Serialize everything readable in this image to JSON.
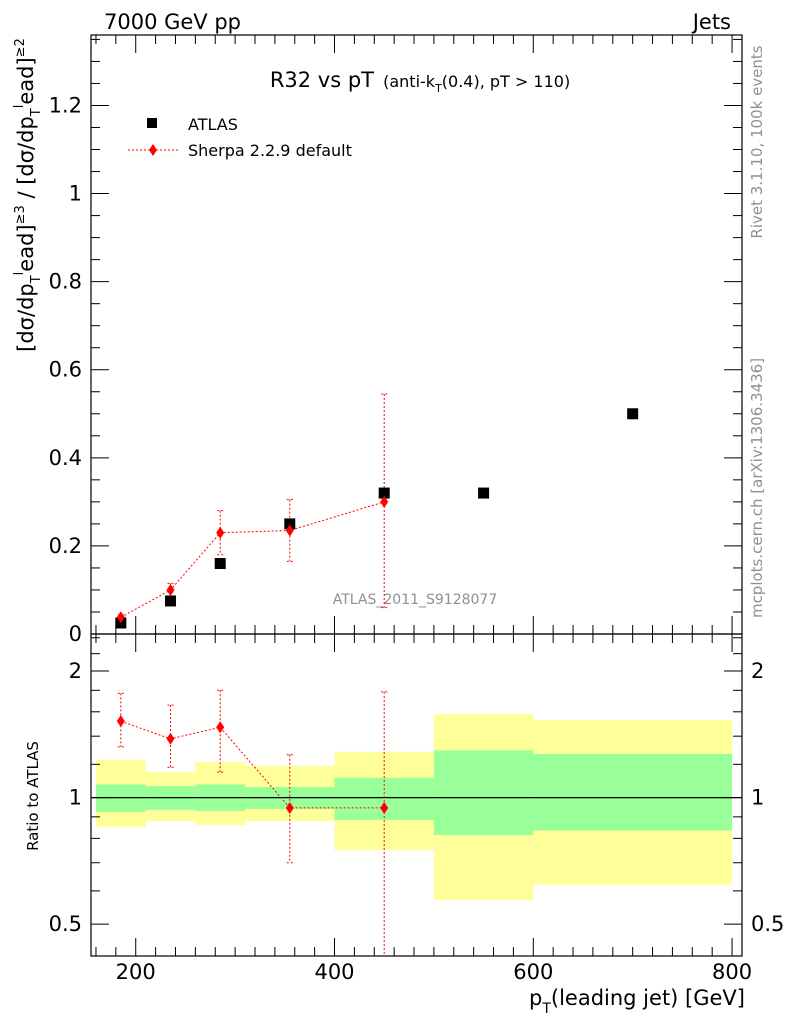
{
  "header": {
    "left": "7000 GeV pp",
    "right": "Jets"
  },
  "side_labels": {
    "rivet": "Rivet 3.1.10,  100k events",
    "mcplots": "mcplots.cern.ch [arXiv:1306.3436]"
  },
  "chart_data": [
    {
      "type": "scatter",
      "title_main": "R32 vs pT",
      "title_sub_pre": "(anti-k",
      "title_sub_sub": "T",
      "title_sub_post": "(0.4), pT > 110)",
      "ylabel_parts": [
        "[dσ/dp",
        "T",
        "l",
        "ead]",
        "≥3",
        " / [dσ/dp",
        "T",
        "l",
        "ead]",
        "≥2"
      ],
      "ylim": [
        0,
        1.36
      ],
      "xlim": [
        155,
        810
      ],
      "yticks": [
        0,
        0.2,
        0.4,
        0.6,
        0.8,
        1,
        1.2
      ],
      "ytick_labels": [
        "0",
        "0.2",
        "0.4",
        "0.6",
        "0.8",
        "1",
        "1.2"
      ],
      "watermark": "ATLAS_2011_S9128077",
      "legend": [
        {
          "name": "ATLAS",
          "marker": "square",
          "color": "#000000"
        },
        {
          "name": "Sherpa 2.2.9 default",
          "marker": "diamond",
          "color": "#ff0000"
        }
      ],
      "series": [
        {
          "name": "ATLAS",
          "x": [
            185,
            235,
            285,
            355,
            450,
            550,
            700
          ],
          "y": [
            0.025,
            0.075,
            0.16,
            0.25,
            0.32,
            0.32,
            0.5
          ]
        },
        {
          "name": "Sherpa 2.2.9 default",
          "x": [
            185,
            235,
            285,
            355,
            450
          ],
          "y": [
            0.038,
            0.1,
            0.23,
            0.235,
            0.3
          ],
          "yerr_low": [
            0.005,
            0.015,
            0.05,
            0.07,
            0.24
          ],
          "yerr_high": [
            0.005,
            0.015,
            0.05,
            0.07,
            0.245
          ]
        }
      ]
    },
    {
      "type": "scatter",
      "ylabel": "Ratio to ATLAS",
      "xlabel_pre": "p",
      "xlabel_sub": "T",
      "xlabel_post": "(leading jet) [GeV]",
      "log_y": true,
      "ylim": [
        0.42,
        2.45
      ],
      "xlim": [
        155,
        810
      ],
      "xticks": [
        200,
        400,
        600,
        800
      ],
      "xtick_labels": [
        "200",
        "400",
        "600",
        "800"
      ],
      "yticks": [
        0.5,
        1,
        2
      ],
      "ytick_labels": [
        "0.5",
        "1",
        "2"
      ],
      "bands": [
        {
          "x0": 160,
          "x1": 210,
          "green": [
            0.925,
            1.075
          ],
          "yellow": [
            0.85,
            1.23
          ]
        },
        {
          "x0": 210,
          "x1": 260,
          "green": [
            0.935,
            1.065
          ],
          "yellow": [
            0.88,
            1.15
          ]
        },
        {
          "x0": 260,
          "x1": 310,
          "green": [
            0.93,
            1.075
          ],
          "yellow": [
            0.86,
            1.215
          ]
        },
        {
          "x0": 310,
          "x1": 400,
          "green": [
            0.94,
            1.06
          ],
          "yellow": [
            0.88,
            1.19
          ]
        },
        {
          "x0": 400,
          "x1": 500,
          "green": [
            0.885,
            1.115
          ],
          "yellow": [
            0.75,
            1.285
          ]
        },
        {
          "x0": 500,
          "x1": 600,
          "green": [
            0.815,
            1.295
          ],
          "yellow": [
            0.57,
            1.58
          ]
        },
        {
          "x0": 600,
          "x1": 800,
          "green": [
            0.835,
            1.27
          ],
          "yellow": [
            0.62,
            1.53
          ]
        }
      ],
      "series": [
        {
          "name": "Sherpa 2.2.9 default",
          "x": [
            185,
            235,
            285,
            355,
            450
          ],
          "y": [
            1.52,
            1.38,
            1.47,
            0.945,
            0.945
          ],
          "yerr_low": [
            0.2,
            0.2,
            0.32,
            0.245,
            0.7
          ],
          "yerr_high": [
            0.25,
            0.28,
            0.33,
            0.32,
            0.84
          ]
        }
      ]
    }
  ]
}
